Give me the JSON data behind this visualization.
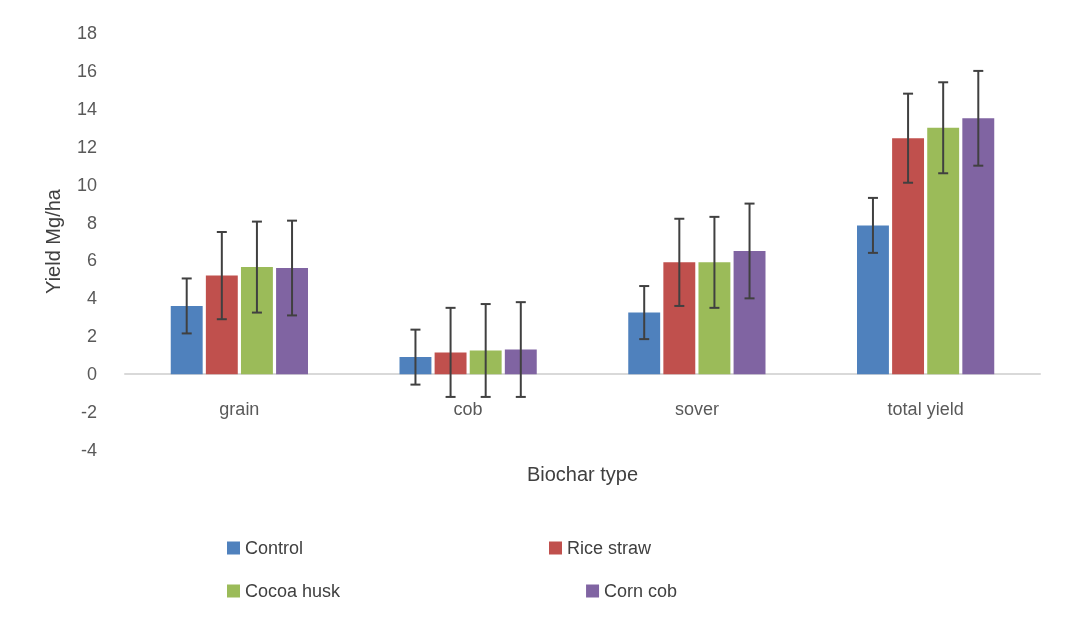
{
  "chart_data": {
    "type": "bar",
    "xlabel": "Biochar type",
    "ylabel": "Yield Mg/ha",
    "categories": [
      "grain",
      "cob",
      "sover",
      "total yield"
    ],
    "series": [
      {
        "name": "Control",
        "color": "#4f81bd",
        "values": [
          3.6,
          0.9,
          3.25,
          7.85
        ],
        "errors": [
          1.45,
          1.45,
          1.4,
          1.45
        ]
      },
      {
        "name": "Rice straw",
        "color": "#c0504d",
        "values": [
          5.2,
          1.15,
          5.9,
          12.45
        ],
        "errors": [
          2.3,
          2.35,
          2.3,
          2.35
        ]
      },
      {
        "name": "Cocoa husk",
        "color": "#9bbb59",
        "values": [
          5.65,
          1.25,
          5.9,
          13.0
        ],
        "errors": [
          2.4,
          2.45,
          2.4,
          2.4
        ]
      },
      {
        "name": "Corn cob",
        "color": "#8064a2",
        "values": [
          5.6,
          1.3,
          6.5,
          13.5
        ],
        "errors": [
          2.5,
          2.5,
          2.5,
          2.5
        ]
      }
    ],
    "ylim": [
      -4,
      18
    ],
    "yticks": [
      -4,
      -2,
      0,
      2,
      4,
      6,
      8,
      10,
      12,
      14,
      16,
      18
    ],
    "grid": false,
    "legend": "bottom"
  }
}
